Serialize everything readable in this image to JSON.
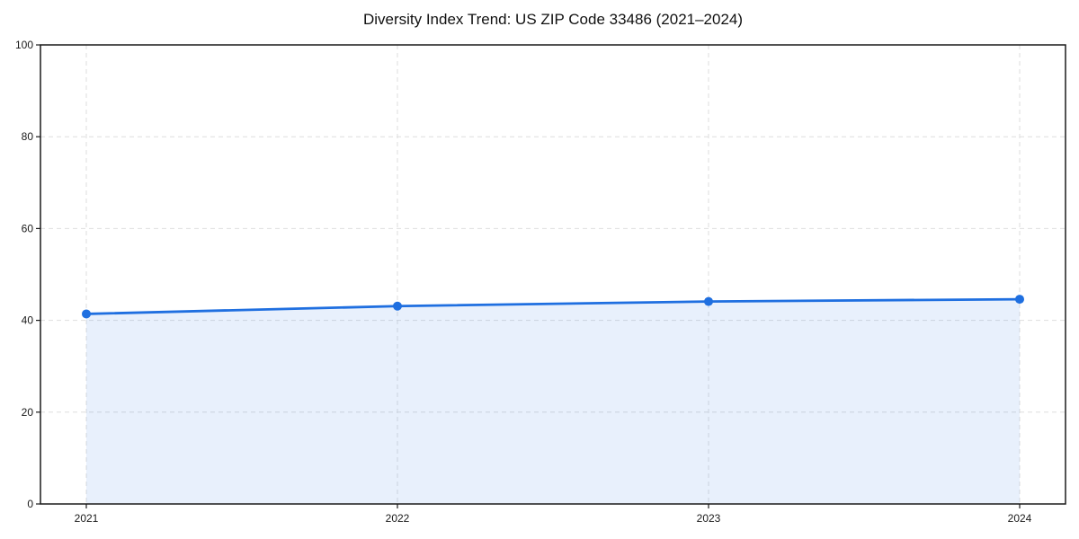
{
  "chart_data": {
    "type": "area",
    "title": "Diversity Index Trend: US ZIP Code 33486 (2021–2024)",
    "series_name": "Diversity Index",
    "categories": [
      "2021",
      "2022",
      "2023",
      "2024"
    ],
    "values": [
      41.4,
      43.1,
      44.1,
      44.6
    ],
    "xlabel": "",
    "ylabel": "",
    "ylim": [
      0,
      100
    ],
    "yticks": [
      0,
      20,
      40,
      60,
      80,
      100
    ],
    "grid": true,
    "grid_style": "dashed",
    "legend": "none",
    "colors": {
      "line": "#1f6fe0",
      "marker": "#1f6fe0",
      "fill": "#1f6fe0",
      "fill_opacity": 0.1,
      "grid": "#dedede",
      "axis": "#1a1a1a",
      "tick_label": "#1a1a1a",
      "background": "#ffffff"
    }
  }
}
